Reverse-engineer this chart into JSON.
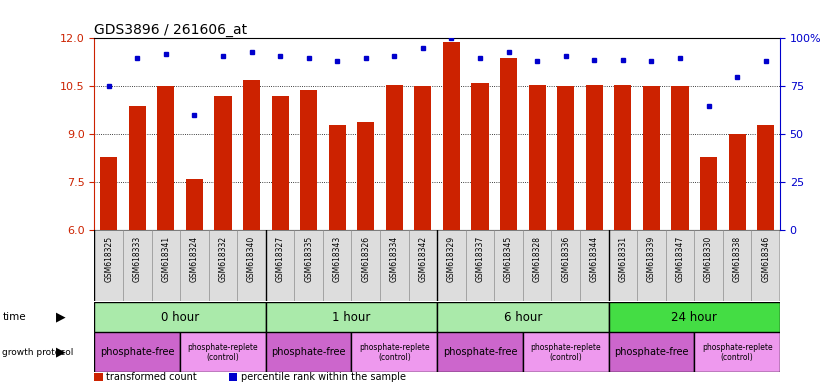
{
  "title": "GDS3896 / 261606_at",
  "samples": [
    "GSM618325",
    "GSM618333",
    "GSM618341",
    "GSM618324",
    "GSM618332",
    "GSM618340",
    "GSM618327",
    "GSM618335",
    "GSM618343",
    "GSM618326",
    "GSM618334",
    "GSM618342",
    "GSM618329",
    "GSM618337",
    "GSM618345",
    "GSM618328",
    "GSM618336",
    "GSM618344",
    "GSM618331",
    "GSM618339",
    "GSM618347",
    "GSM618330",
    "GSM618338",
    "GSM618346"
  ],
  "bar_values": [
    8.3,
    9.9,
    10.5,
    7.6,
    10.2,
    10.7,
    10.2,
    10.4,
    9.3,
    9.4,
    10.55,
    10.5,
    11.9,
    10.6,
    11.4,
    10.55,
    10.5,
    10.55,
    10.55,
    10.5,
    10.5,
    8.3,
    9.0,
    9.3
  ],
  "dot_values": [
    75,
    90,
    92,
    60,
    91,
    93,
    91,
    90,
    88,
    90,
    91,
    95,
    100,
    90,
    93,
    88,
    91,
    89,
    89,
    88,
    90,
    65,
    80,
    88
  ],
  "ylim": [
    6,
    12
  ],
  "y_ticks": [
    6,
    7.5,
    9,
    10.5,
    12
  ],
  "y2_ticks": [
    0,
    25,
    50,
    75,
    100
  ],
  "time_groups": [
    {
      "label": "0 hour",
      "start": 0,
      "end": 6,
      "color": "#AAEAAA"
    },
    {
      "label": "1 hour",
      "start": 6,
      "end": 12,
      "color": "#AAEAAA"
    },
    {
      "label": "6 hour",
      "start": 12,
      "end": 18,
      "color": "#AAEAAA"
    },
    {
      "label": "24 hour",
      "start": 18,
      "end": 24,
      "color": "#44DD44"
    }
  ],
  "protocol_groups": [
    {
      "label": "phosphate-free",
      "start": 0,
      "end": 3,
      "color": "#CC66CC"
    },
    {
      "label": "phosphate-replete\n(control)",
      "start": 3,
      "end": 6,
      "color": "#EE99EE"
    },
    {
      "label": "phosphate-free",
      "start": 6,
      "end": 9,
      "color": "#CC66CC"
    },
    {
      "label": "phosphate-replete\n(control)",
      "start": 9,
      "end": 12,
      "color": "#EE99EE"
    },
    {
      "label": "phosphate-free",
      "start": 12,
      "end": 15,
      "color": "#CC66CC"
    },
    {
      "label": "phosphate-replete\n(control)",
      "start": 15,
      "end": 18,
      "color": "#EE99EE"
    },
    {
      "label": "phosphate-free",
      "start": 18,
      "end": 21,
      "color": "#CC66CC"
    },
    {
      "label": "phosphate-replete\n(control)",
      "start": 21,
      "end": 24,
      "color": "#EE99EE"
    }
  ],
  "bar_color": "#CC2200",
  "dot_color": "#0000CC",
  "bg_color": "#FFFFFF",
  "left_axis_color": "#CC2200",
  "right_axis_color": "#0000CC",
  "sample_bg_color": "#DDDDDD",
  "legend_square_size": 0.012
}
